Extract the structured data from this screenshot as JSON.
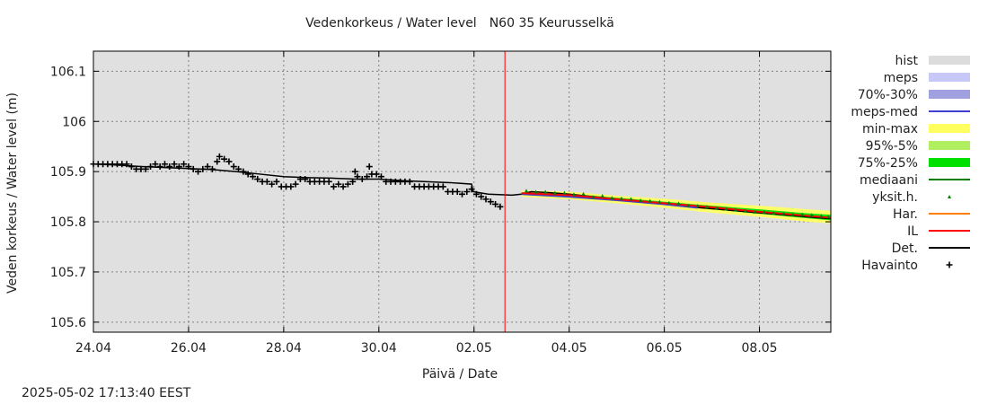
{
  "title": {
    "main": "Vedenkorkeus / Water level",
    "station": "N60 35 Keurusselkä"
  },
  "footer_timestamp": "2025-05-02 17:13:40 EEST",
  "chart_data": {
    "type": "line",
    "title": "Vedenkorkeus / Water level   N60 35 Keurusselkä",
    "xlabel": "Päivä / Date",
    "ylabel": "Veden korkeus / Water level (m)",
    "xlim_days": [
      0,
      15.5
    ],
    "ylim": [
      105.58,
      106.14
    ],
    "x_ticks": [
      {
        "day": 0,
        "label": "24.04"
      },
      {
        "day": 2,
        "label": "26.04"
      },
      {
        "day": 4,
        "label": "28.04"
      },
      {
        "day": 6,
        "label": "30.04"
      },
      {
        "day": 8,
        "label": "02.05"
      },
      {
        "day": 10,
        "label": "04.05"
      },
      {
        "day": 12,
        "label": "06.05"
      },
      {
        "day": 14,
        "label": "08.05"
      }
    ],
    "y_ticks": [
      {
        "value": 105.6,
        "label": "105.6"
      },
      {
        "value": 105.7,
        "label": "105.7"
      },
      {
        "value": 105.8,
        "label": "105.8"
      },
      {
        "value": 105.9,
        "label": "105.9"
      },
      {
        "value": 106.0,
        "label": "106"
      },
      {
        "value": 106.1,
        "label": "106.1"
      }
    ],
    "grid": true,
    "now_day": 8.65,
    "now_line_color": "#ff0000",
    "plot_background": "#e0e0e0",
    "legend": [
      {
        "label": "hist",
        "kind": "band",
        "color": "#dcdcdc"
      },
      {
        "label": "meps",
        "kind": "band",
        "color": "#c8c8f8"
      },
      {
        "label": "70%-30%",
        "kind": "band",
        "color": "#a0a0e0"
      },
      {
        "label": "meps-med",
        "kind": "line",
        "color": "#4040d0"
      },
      {
        "label": "min-max",
        "kind": "band",
        "color": "#ffff60"
      },
      {
        "label": "95%-5%",
        "kind": "band",
        "color": "#b0f060"
      },
      {
        "label": "75%-25%",
        "kind": "band",
        "color": "#00e000"
      },
      {
        "label": "mediaani",
        "kind": "line",
        "color": "#008000"
      },
      {
        "label": "yksit.h.",
        "kind": "point",
        "color": "#008000"
      },
      {
        "label": "Har.",
        "kind": "line",
        "color": "#ff8000"
      },
      {
        "label": "IL",
        "kind": "line",
        "color": "#ff0000"
      },
      {
        "label": "Det.",
        "kind": "line",
        "color": "#000000"
      },
      {
        "label": "Havainto",
        "kind": "plus",
        "color": "#000000"
      }
    ],
    "series": [
      {
        "name": "Det.",
        "type": "line",
        "color": "#000000",
        "points": [
          [
            0,
            105.915
          ],
          [
            0.5,
            105.913
          ],
          [
            1,
            105.91
          ],
          [
            1.5,
            105.908
          ],
          [
            2,
            105.906
          ],
          [
            2.5,
            105.904
          ],
          [
            3,
            105.9
          ],
          [
            3.5,
            105.895
          ],
          [
            4,
            105.89
          ],
          [
            4.5,
            105.888
          ],
          [
            5,
            105.887
          ],
          [
            5.5,
            105.885
          ],
          [
            6,
            105.885
          ],
          [
            6.5,
            105.882
          ],
          [
            7,
            105.88
          ],
          [
            7.5,
            105.878
          ],
          [
            7.95,
            105.875
          ],
          [
            7.98,
            105.86
          ],
          [
            8.3,
            105.855
          ],
          [
            8.8,
            105.853
          ],
          [
            9,
            105.855
          ],
          [
            9.2,
            105.86
          ],
          [
            9.6,
            105.858
          ],
          [
            10,
            105.855
          ],
          [
            10.5,
            105.85
          ],
          [
            11,
            105.845
          ],
          [
            11.5,
            105.84
          ],
          [
            12,
            105.835
          ],
          [
            12.5,
            105.83
          ],
          [
            13,
            105.826
          ],
          [
            13.5,
            105.822
          ],
          [
            14,
            105.818
          ],
          [
            14.5,
            105.814
          ],
          [
            15,
            105.81
          ],
          [
            15.5,
            105.806
          ]
        ]
      },
      {
        "name": "Havainto",
        "type": "plus",
        "color": "#000000",
        "points": [
          [
            0.0,
            105.915
          ],
          [
            0.1,
            105.915
          ],
          [
            0.2,
            105.915
          ],
          [
            0.3,
            105.915
          ],
          [
            0.4,
            105.915
          ],
          [
            0.5,
            105.915
          ],
          [
            0.6,
            105.915
          ],
          [
            0.7,
            105.915
          ],
          [
            0.8,
            105.91
          ],
          [
            0.9,
            105.905
          ],
          [
            1.0,
            105.905
          ],
          [
            1.1,
            105.905
          ],
          [
            1.2,
            105.91
          ],
          [
            1.3,
            105.915
          ],
          [
            1.4,
            105.91
          ],
          [
            1.5,
            105.915
          ],
          [
            1.6,
            105.91
          ],
          [
            1.7,
            105.915
          ],
          [
            1.8,
            105.91
          ],
          [
            1.9,
            105.915
          ],
          [
            2.0,
            105.91
          ],
          [
            2.1,
            105.905
          ],
          [
            2.2,
            105.9
          ],
          [
            2.3,
            105.905
          ],
          [
            2.4,
            105.91
          ],
          [
            2.5,
            105.905
          ],
          [
            2.6,
            105.92
          ],
          [
            2.65,
            105.93
          ],
          [
            2.75,
            105.925
          ],
          [
            2.85,
            105.92
          ],
          [
            2.95,
            105.91
          ],
          [
            3.05,
            105.905
          ],
          [
            3.15,
            105.9
          ],
          [
            3.25,
            105.895
          ],
          [
            3.35,
            105.89
          ],
          [
            3.45,
            105.885
          ],
          [
            3.55,
            105.88
          ],
          [
            3.65,
            105.88
          ],
          [
            3.75,
            105.875
          ],
          [
            3.85,
            105.88
          ],
          [
            3.95,
            105.87
          ],
          [
            4.05,
            105.87
          ],
          [
            4.15,
            105.87
          ],
          [
            4.25,
            105.875
          ],
          [
            4.35,
            105.885
          ],
          [
            4.45,
            105.885
          ],
          [
            4.55,
            105.88
          ],
          [
            4.65,
            105.88
          ],
          [
            4.75,
            105.88
          ],
          [
            4.85,
            105.88
          ],
          [
            4.95,
            105.88
          ],
          [
            5.05,
            105.87
          ],
          [
            5.15,
            105.875
          ],
          [
            5.25,
            105.87
          ],
          [
            5.35,
            105.875
          ],
          [
            5.45,
            105.88
          ],
          [
            5.5,
            105.9
          ],
          [
            5.55,
            105.89
          ],
          [
            5.65,
            105.885
          ],
          [
            5.75,
            105.89
          ],
          [
            5.8,
            105.91
          ],
          [
            5.85,
            105.895
          ],
          [
            5.95,
            105.895
          ],
          [
            6.05,
            105.89
          ],
          [
            6.15,
            105.88
          ],
          [
            6.25,
            105.88
          ],
          [
            6.35,
            105.88
          ],
          [
            6.45,
            105.88
          ],
          [
            6.55,
            105.88
          ],
          [
            6.65,
            105.88
          ],
          [
            6.75,
            105.87
          ],
          [
            6.85,
            105.87
          ],
          [
            6.95,
            105.87
          ],
          [
            7.05,
            105.87
          ],
          [
            7.15,
            105.87
          ],
          [
            7.25,
            105.87
          ],
          [
            7.35,
            105.87
          ],
          [
            7.45,
            105.86
          ],
          [
            7.55,
            105.86
          ],
          [
            7.65,
            105.86
          ],
          [
            7.75,
            105.855
          ],
          [
            7.85,
            105.86
          ],
          [
            7.95,
            105.865
          ],
          [
            8.05,
            105.855
          ],
          [
            8.15,
            105.85
          ],
          [
            8.25,
            105.845
          ],
          [
            8.35,
            105.84
          ],
          [
            8.45,
            105.835
          ],
          [
            8.55,
            105.83
          ]
        ]
      },
      {
        "name": "yksit.h.",
        "type": "point",
        "color": "#008000",
        "points": [
          [
            9.1,
            105.862
          ],
          [
            9.3,
            105.86
          ],
          [
            9.5,
            105.86
          ],
          [
            9.7,
            105.858
          ],
          [
            9.9,
            105.858
          ],
          [
            10.1,
            105.855
          ],
          [
            10.3,
            105.856
          ],
          [
            10.5,
            105.85
          ],
          [
            10.7,
            105.852
          ],
          [
            10.9,
            105.848
          ],
          [
            11.1,
            105.847
          ],
          [
            11.3,
            105.846
          ],
          [
            11.5,
            105.843
          ],
          [
            11.7,
            105.842
          ],
          [
            11.9,
            105.84
          ],
          [
            12.1,
            105.838
          ],
          [
            12.3,
            105.837
          ],
          [
            12.5,
            105.833
          ],
          [
            12.7,
            105.832
          ],
          [
            12.9,
            105.83
          ],
          [
            13.1,
            105.828
          ],
          [
            13.3,
            105.826
          ],
          [
            13.5,
            105.824
          ],
          [
            13.7,
            105.822
          ],
          [
            13.9,
            105.82
          ],
          [
            14.1,
            105.82
          ],
          [
            14.3,
            105.818
          ],
          [
            14.5,
            105.817
          ],
          [
            14.7,
            105.815
          ],
          [
            14.9,
            105.815
          ],
          [
            15.1,
            105.814
          ],
          [
            15.3,
            105.812
          ],
          [
            15.45,
            105.81
          ]
        ]
      },
      {
        "name": "IL",
        "type": "line",
        "color": "#ff0000",
        "points": [
          [
            9,
            105.857
          ],
          [
            10,
            105.853
          ],
          [
            11,
            105.845
          ],
          [
            12,
            105.837
          ],
          [
            13,
            105.829
          ],
          [
            14,
            105.82
          ],
          [
            15,
            105.812
          ],
          [
            15.5,
            105.808
          ]
        ]
      },
      {
        "name": "meps-med",
        "type": "line",
        "color": "#4040d0",
        "points": [
          [
            9,
            105.855
          ],
          [
            10,
            105.85
          ],
          [
            11,
            105.843
          ],
          [
            12,
            105.835
          ],
          [
            12.7,
            105.828
          ]
        ]
      },
      {
        "name": "min-max",
        "type": "band",
        "color": "#ffff60",
        "upper": [
          [
            9,
            105.862
          ],
          [
            10,
            105.86
          ],
          [
            11,
            105.852
          ],
          [
            12,
            105.846
          ],
          [
            13,
            105.838
          ],
          [
            14,
            105.832
          ],
          [
            15,
            105.825
          ],
          [
            15.5,
            105.822
          ]
        ],
        "lower": [
          [
            9,
            105.85
          ],
          [
            10,
            105.845
          ],
          [
            11,
            105.837
          ],
          [
            12,
            105.828
          ],
          [
            13,
            105.818
          ],
          [
            14,
            105.81
          ],
          [
            15,
            105.8
          ],
          [
            15.5,
            105.797
          ]
        ]
      },
      {
        "name": "75%-25%",
        "type": "band",
        "color": "#00e000",
        "upper": [
          [
            9,
            105.858
          ],
          [
            10,
            105.856
          ],
          [
            11,
            105.848
          ],
          [
            12,
            105.84
          ],
          [
            13,
            105.832
          ],
          [
            14,
            105.825
          ],
          [
            15,
            105.817
          ],
          [
            15.5,
            105.814
          ]
        ],
        "lower": [
          [
            9,
            105.854
          ],
          [
            10,
            105.851
          ],
          [
            11,
            105.843
          ],
          [
            12,
            105.834
          ],
          [
            13,
            105.825
          ],
          [
            14,
            105.816
          ],
          [
            15,
            105.807
          ],
          [
            15.5,
            105.803
          ]
        ]
      }
    ]
  }
}
